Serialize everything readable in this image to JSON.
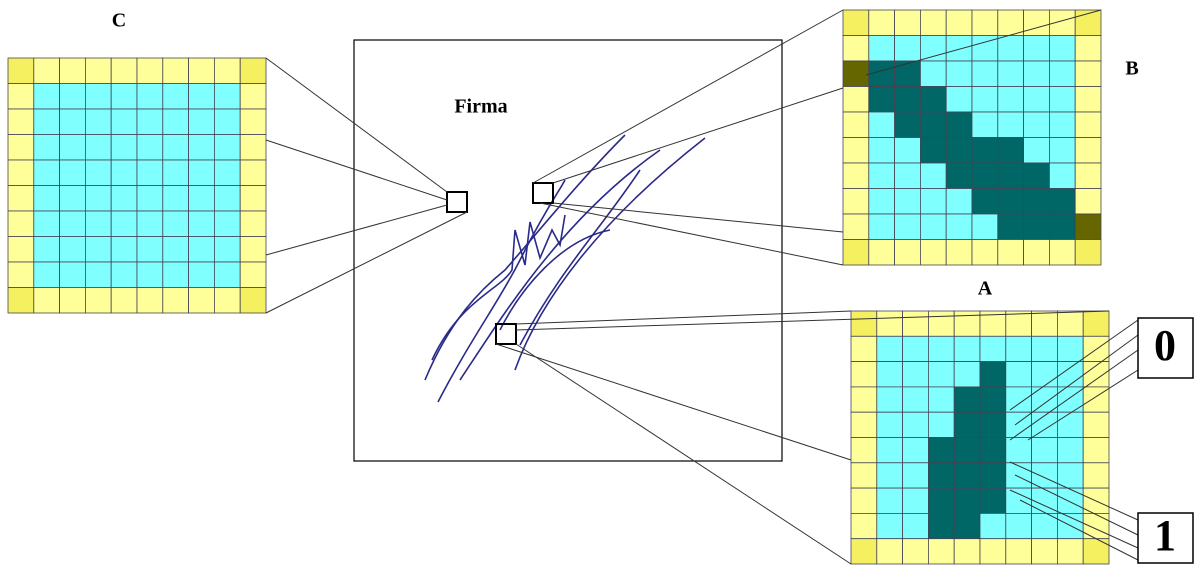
{
  "image_label": "Firma",
  "panels": [
    {
      "label": "C"
    },
    {
      "label": "B"
    },
    {
      "label": "A"
    }
  ],
  "bit_labels": [
    "0",
    "1"
  ]
}
